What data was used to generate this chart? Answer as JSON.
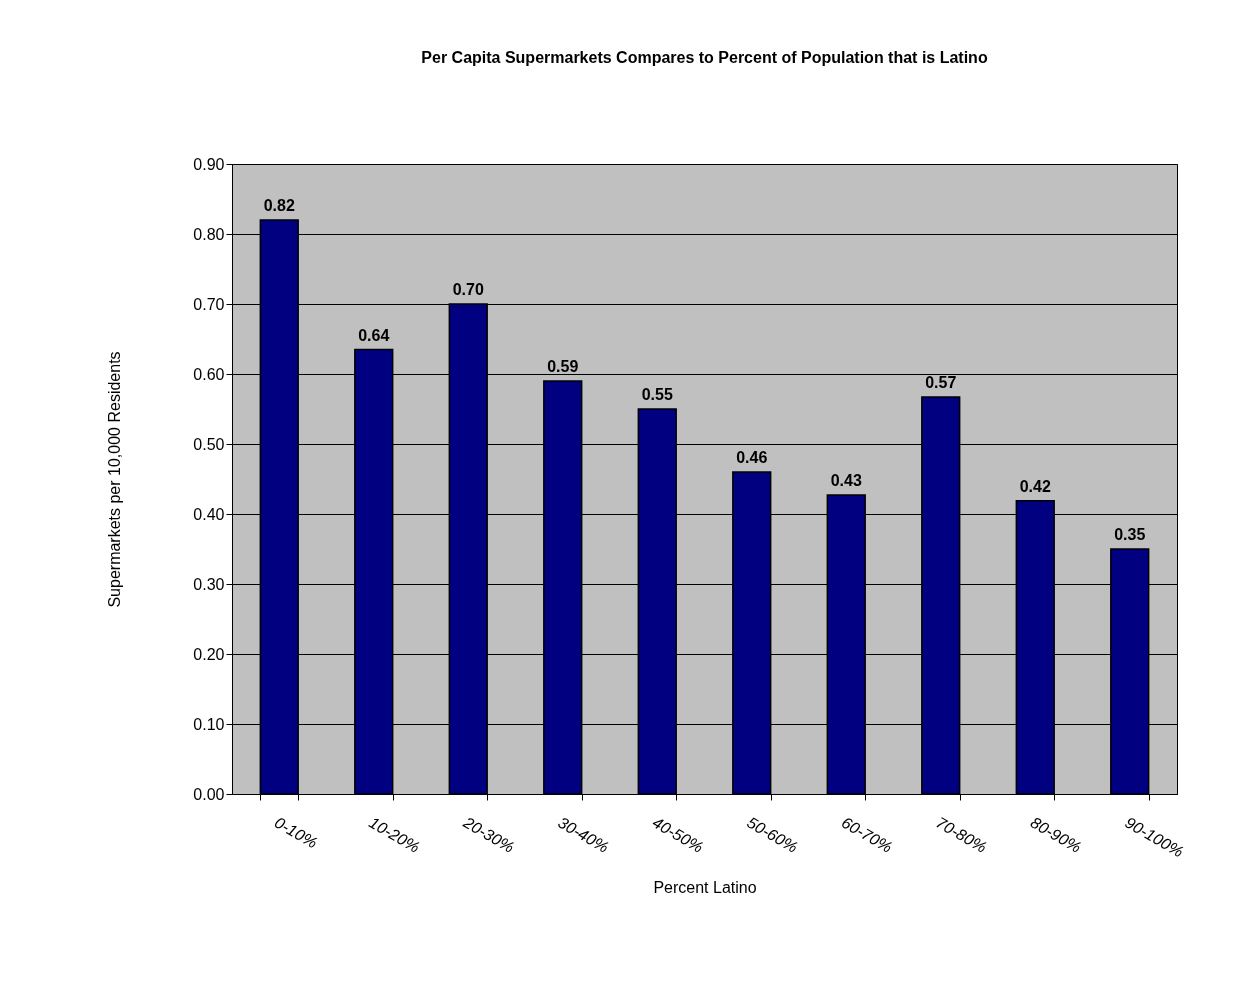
{
  "chart_data": {
    "type": "bar",
    "title": "Per Capita Supermarkets Compares to Percent of Population that is Latino",
    "xlabel": "Percent Latino",
    "ylabel": "Supermarkets per 10,000 Residents",
    "categories": [
      "0-10%",
      "10-20%",
      "20-30%",
      "30-40%",
      "40-50%",
      "50-60%",
      "60-70%",
      "70-80%",
      "80-90%",
      "90-100%"
    ],
    "values": [
      0.82,
      0.635,
      0.7,
      0.59,
      0.55,
      0.46,
      0.427,
      0.567,
      0.419,
      0.35
    ],
    "value_labels": [
      "0.82",
      "0.64",
      "0.70",
      "0.59",
      "0.55",
      "0.46",
      "0.43",
      "0.57",
      "0.42",
      "0.35"
    ],
    "color": "#000080",
    "ylim": [
      0,
      0.9
    ],
    "yticks": [
      {
        "value": 0,
        "label": "0.00"
      },
      {
        "value": 0.1,
        "label": "0.10"
      },
      {
        "value": 0.2,
        "label": "0.20"
      },
      {
        "value": 0.3,
        "label": "0.30"
      },
      {
        "value": 0.4,
        "label": "0.40"
      },
      {
        "value": 0.5,
        "label": "0.50"
      },
      {
        "value": 0.6,
        "label": "0.60"
      },
      {
        "value": 0.7,
        "label": "0.70"
      },
      {
        "value": 0.8,
        "label": "0.80"
      },
      {
        "value": 0.9,
        "label": "0.90"
      }
    ],
    "grid": "y"
  }
}
